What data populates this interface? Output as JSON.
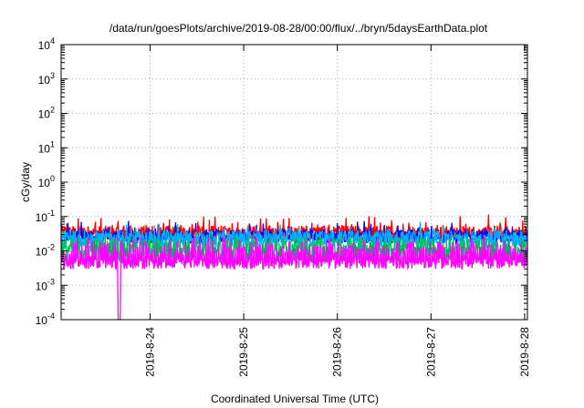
{
  "chart_data": {
    "type": "line",
    "title": "/data/run/goesPlots/archive/2019-08-28/00:00/flux/../bryn/5daysEarthData.plot",
    "xlabel": "Coordinated Universal Time (UTC)",
    "ylabel": "cGy/day",
    "yscale": "log",
    "ylim": [
      0.0001,
      10000
    ],
    "xlim": [
      -0.95,
      4.03
    ],
    "x_origin_label": "2019-8-24",
    "grid": true,
    "y_ticks": [
      {
        "base": "10",
        "exp": "-4",
        "value": 0.0001
      },
      {
        "base": "10",
        "exp": "-3",
        "value": 0.001
      },
      {
        "base": "10",
        "exp": "-2",
        "value": 0.01
      },
      {
        "base": "10",
        "exp": "-1",
        "value": 0.1
      },
      {
        "base": "10",
        "exp": "0",
        "value": 1
      },
      {
        "base": "10",
        "exp": "1",
        "value": 10
      },
      {
        "base": "10",
        "exp": "2",
        "value": 100
      },
      {
        "base": "10",
        "exp": "3",
        "value": 1000
      },
      {
        "base": "10",
        "exp": "4",
        "value": 10000
      }
    ],
    "x_ticks": [
      {
        "label": "2019-8-24",
        "value": 0
      },
      {
        "label": "2019-8-25",
        "value": 1
      },
      {
        "label": "2019-8-26",
        "value": 2
      },
      {
        "label": "2019-8-27",
        "value": 3
      },
      {
        "label": "2019-8-28",
        "value": 4
      }
    ],
    "series": [
      {
        "color": "#ff0000",
        "base": 0.033,
        "jitter": 0.22,
        "spike_every": 11,
        "spike": 1.7
      },
      {
        "color": "#0000ff",
        "base": 0.026,
        "jitter": 0.2,
        "spike_every": 13,
        "spike": 1.6
      },
      {
        "color": "#00b0ff",
        "base": 0.022,
        "jitter": 0.25,
        "spike_every": 9,
        "spike": 1.5
      },
      {
        "color": "#00c060",
        "base": 0.011,
        "jitter": 0.35,
        "spike_every": 0,
        "spike": 1
      },
      {
        "color": "#ff00ff",
        "base": 0.0045,
        "jitter": 0.18,
        "spike_every": 4,
        "spike": 3.2,
        "dropout": {
          "x": -0.33,
          "to": 0.0001
        }
      }
    ]
  }
}
